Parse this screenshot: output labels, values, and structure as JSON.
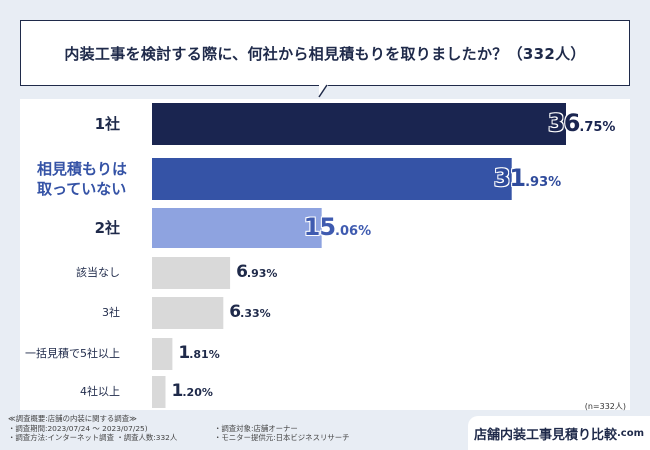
{
  "question": "内装工事を検討する際に、何社から相見積もりを取りましたか？（332人）",
  "chart_data": {
    "type": "bar",
    "orientation": "horizontal",
    "title": "内装工事を検討する際に、何社から相見積もりを取りましたか？（332人）",
    "categories": [
      "1社",
      "相見積もりは取っていない",
      "2社",
      "該当なし",
      "3社",
      "一括見積で5社以上",
      "4社以上"
    ],
    "category_display": [
      [
        "1社"
      ],
      [
        "相見積もりは",
        "取っていない"
      ],
      [
        "2社"
      ],
      [
        "該当なし"
      ],
      [
        "3社"
      ],
      [
        "一括見積で5社以上"
      ],
      [
        "4社以上"
      ]
    ],
    "values": [
      36.75,
      31.93,
      15.06,
      6.93,
      6.33,
      1.81,
      1.2
    ],
    "value_labels": [
      {
        "int": "36",
        "dec": ".75%"
      },
      {
        "int": "31",
        "dec": ".93%"
      },
      {
        "int": "15",
        "dec": ".06%"
      },
      {
        "int": "6",
        "dec": ".93%"
      },
      {
        "int": "6",
        "dec": ".33%"
      },
      {
        "int": "1",
        "dec": ".81%"
      },
      {
        "int": "1",
        "dec": ".20%"
      }
    ],
    "unit": "%",
    "colors": [
      "#1a2550",
      "#3553a6",
      "#8ea3e0",
      "#d9d9d9",
      "#d9d9d9",
      "#d9d9d9",
      "#d9d9d9"
    ],
    "xlim": [
      0,
      40
    ],
    "grid": false,
    "legend": "none"
  },
  "n_note": "(n=332人)",
  "footnotes": {
    "heading": "≪調査概要:店舗の内装に関する調査≫",
    "period": "・調査期間:2023/07/24 ～ 2023/07/25)",
    "target": "・調査対象:店舗オーナー",
    "method": "・調査方法:インターネット調査",
    "count": "・調査人数:332人",
    "provider": "・モニター提供元:日本ビジネスリサーチ"
  },
  "brand": {
    "name": "店舗内装工事見積り比較",
    "domain": ".com"
  }
}
